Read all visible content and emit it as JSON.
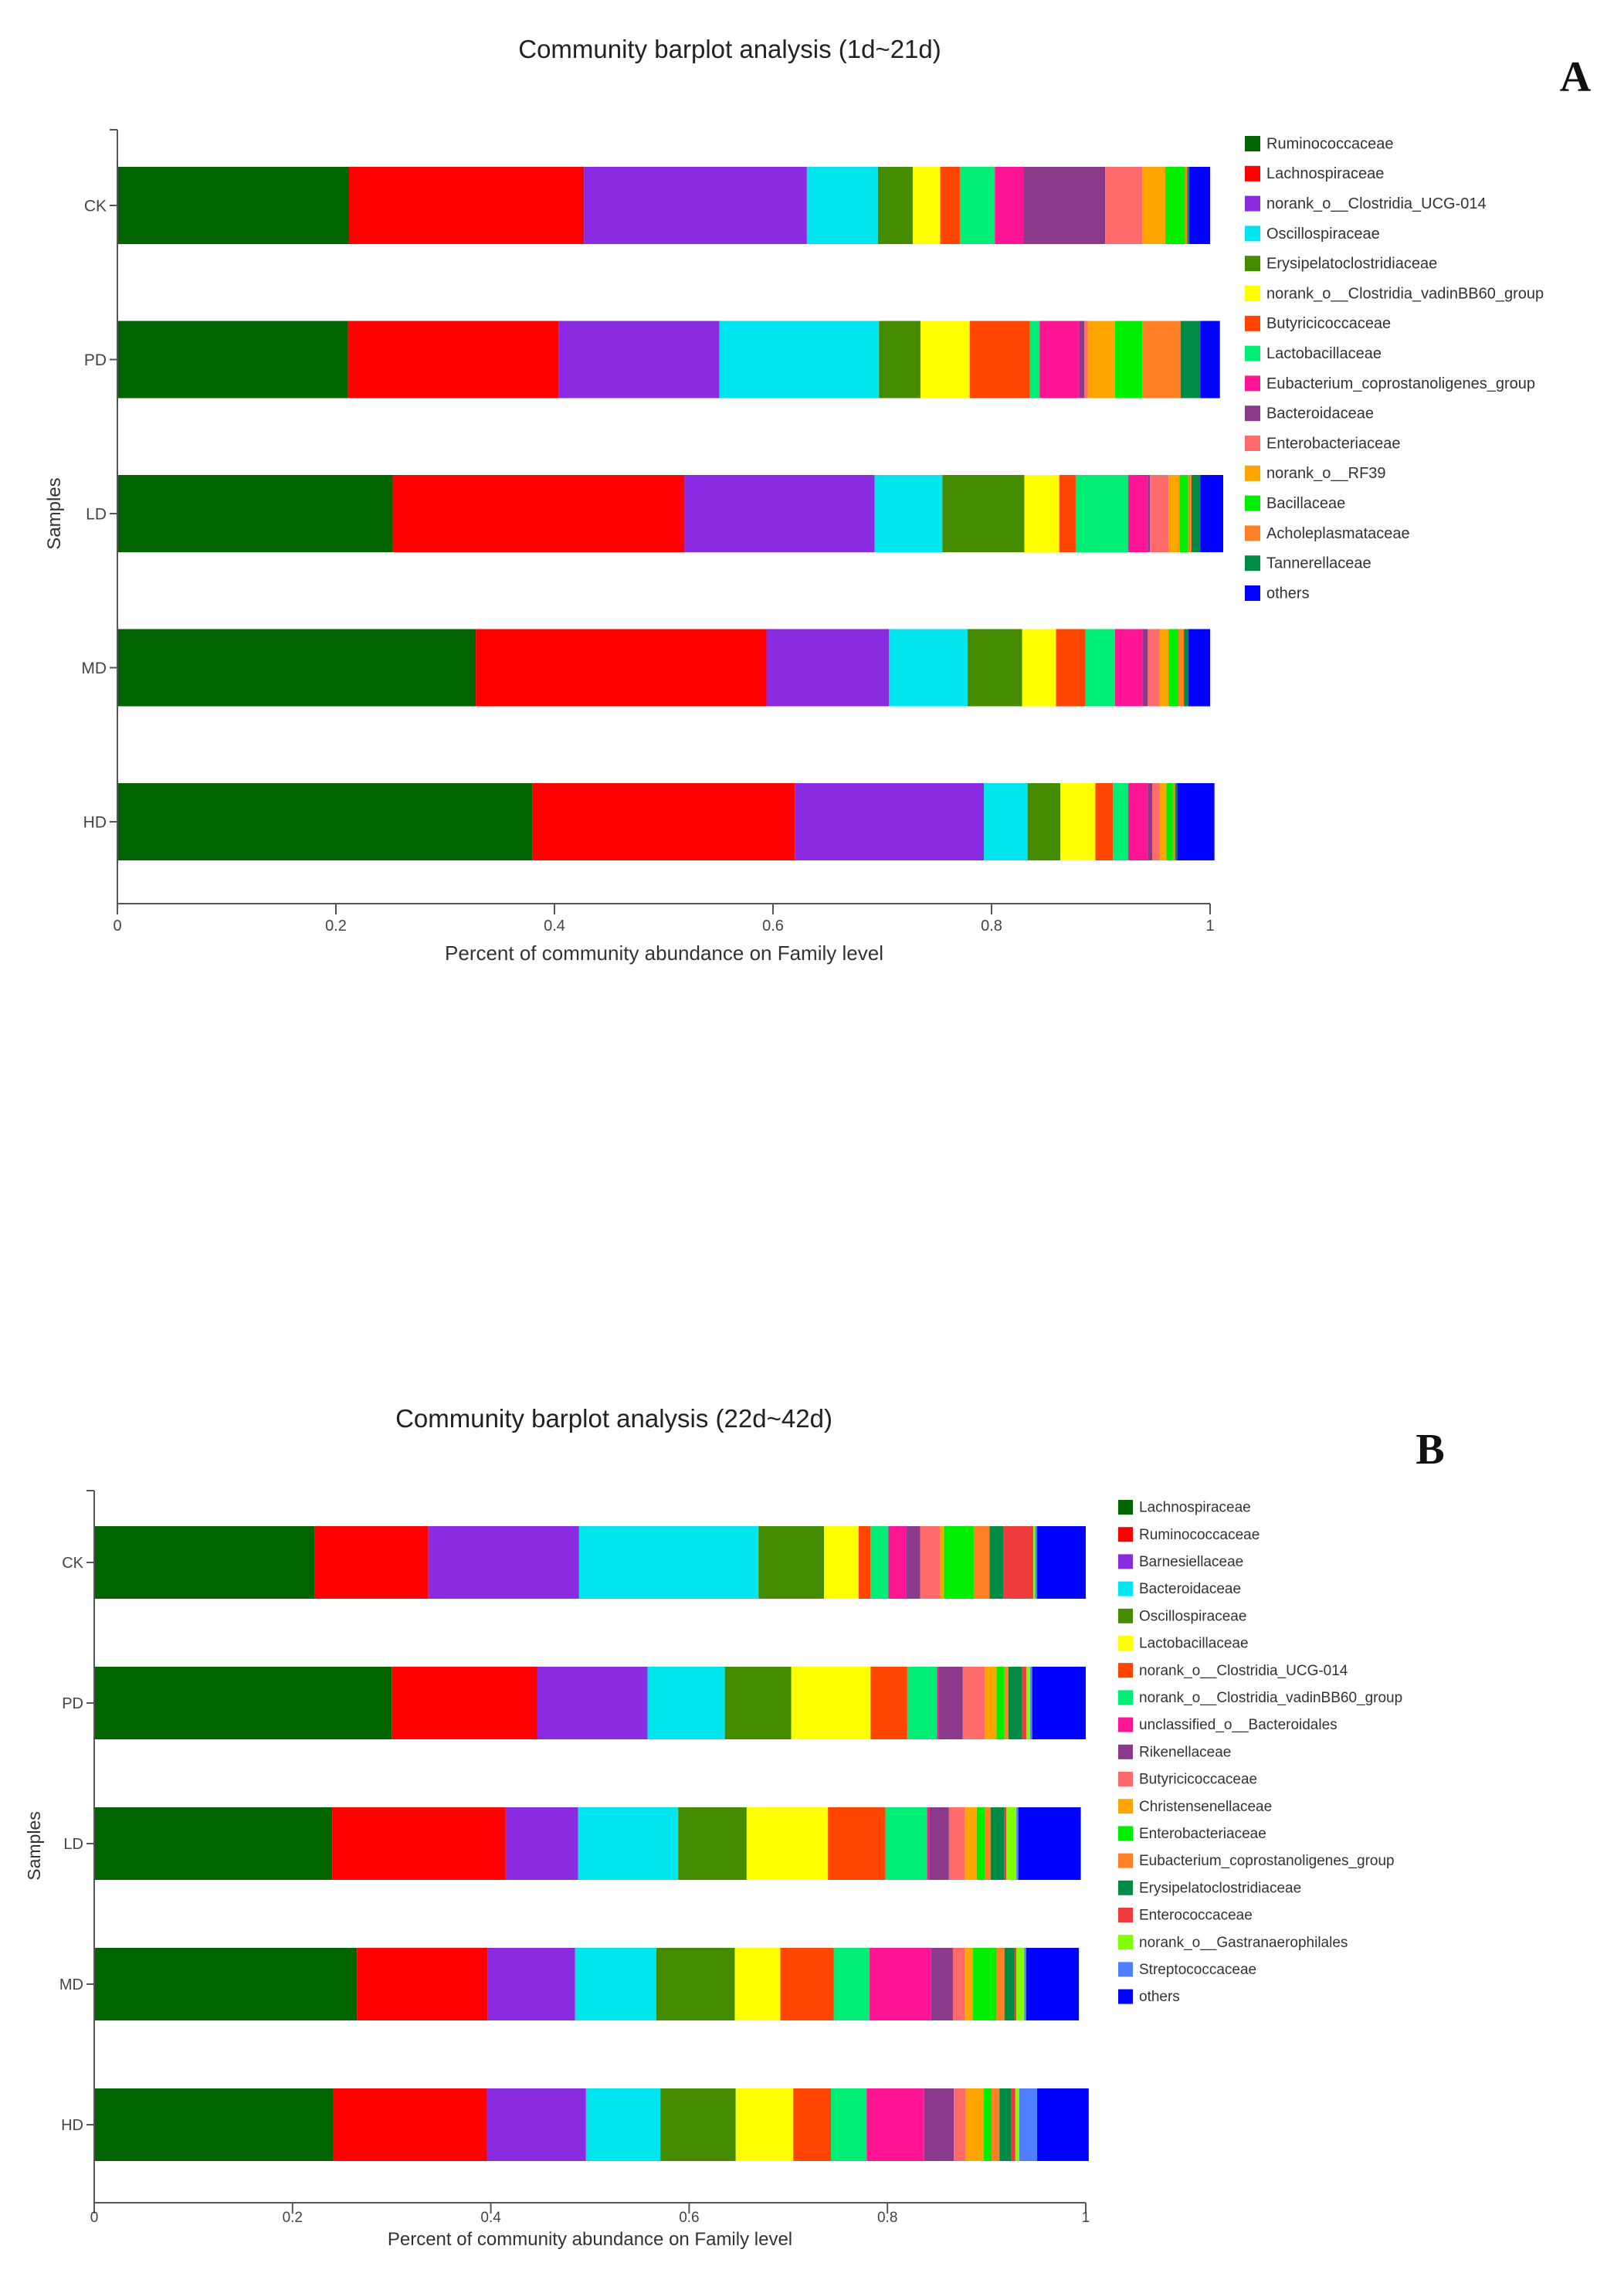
{
  "chart_data": [
    {
      "type": "bar",
      "orientation": "horizontal-stacked",
      "panel_label": "A",
      "title": "Community barplot analysis  (1d~21d)",
      "xlabel": "Percent of community abundance on Family level",
      "ylabel": "Samples",
      "xlim": [
        0,
        1
      ],
      "xticks": [
        "0",
        "0.2",
        "0.4",
        "0.6",
        "0.8",
        "1"
      ],
      "categories": [
        "CK",
        "PD",
        "LD",
        "MD",
        "HD"
      ],
      "legend_position": "right",
      "series": [
        {
          "name": "Ruminococcaceae",
          "color": "#006400",
          "values": [
            0.212,
            0.211,
            0.252,
            0.328,
            0.38
          ]
        },
        {
          "name": "Lachnospiraceae",
          "color": "#ff0000",
          "values": [
            0.215,
            0.193,
            0.267,
            0.266,
            0.24
          ]
        },
        {
          "name": "norank_o__Clostridia_UCG-014",
          "color": "#8a2be2",
          "values": [
            0.204,
            0.147,
            0.174,
            0.112,
            0.173
          ]
        },
        {
          "name": "Oscillospiraceae",
          "color": "#00e5ee",
          "values": [
            0.065,
            0.146,
            0.062,
            0.072,
            0.04
          ]
        },
        {
          "name": "Erysipelatoclostridiaceae",
          "color": "#458b00",
          "values": [
            0.032,
            0.038,
            0.075,
            0.05,
            0.03
          ]
        },
        {
          "name": "norank_o__Clostridia_vadinBB60_group",
          "color": "#ffff00",
          "values": [
            0.025,
            0.045,
            0.032,
            0.031,
            0.032
          ]
        },
        {
          "name": "Butyricicoccaceae",
          "color": "#ff4500",
          "values": [
            0.018,
            0.055,
            0.015,
            0.027,
            0.016
          ]
        },
        {
          "name": "Lactobacillaceae",
          "color": "#00ee76",
          "values": [
            0.032,
            0.009,
            0.048,
            0.027,
            0.014
          ]
        },
        {
          "name": "Eubacterium_coprostanoligenes_group",
          "color": "#ff1493",
          "values": [
            0.026,
            0.036,
            0.018,
            0.025,
            0.018
          ]
        },
        {
          "name": "Bacteroidaceae",
          "color": "#8b3a8b",
          "values": [
            0.075,
            0.005,
            0.002,
            0.005,
            0.004
          ]
        },
        {
          "name": "Enterobacteriaceae",
          "color": "#ff6a6a",
          "values": [
            0.034,
            0.003,
            0.017,
            0.011,
            0.007
          ]
        },
        {
          "name": "norank_o__RF39",
          "color": "#ffa500",
          "values": [
            0.021,
            0.025,
            0.01,
            0.008,
            0.006
          ]
        },
        {
          "name": "Bacillaceae",
          "color": "#00ee00",
          "values": [
            0.018,
            0.025,
            0.008,
            0.009,
            0.006
          ]
        },
        {
          "name": "Acholeplasmataceae",
          "color": "#ff7f24",
          "values": [
            0.002,
            0.035,
            0.003,
            0.005,
            0.002
          ]
        },
        {
          "name": "Tannerellaceae",
          "color": "#008b45",
          "values": [
            0.002,
            0.018,
            0.008,
            0.004,
            0.002
          ]
        },
        {
          "name": "others",
          "color": "#0000ff",
          "values": [
            0.019,
            0.018,
            0.021,
            0.02,
            0.034
          ]
        }
      ]
    },
    {
      "type": "bar",
      "orientation": "horizontal-stacked",
      "panel_label": "B",
      "title": "Community barplot analysis  (22d~42d)",
      "xlabel": "Percent of community abundance on Family level",
      "ylabel": "Samples",
      "xlim": [
        0,
        1
      ],
      "xticks": [
        "0",
        "0.2",
        "0.4",
        "0.6",
        "0.8",
        "1"
      ],
      "categories": [
        "CK",
        "PD",
        "LD",
        "MD",
        "HD"
      ],
      "legend_position": "right",
      "series": [
        {
          "name": "Lachnospiraceae",
          "color": "#006400",
          "values": [
            0.222,
            0.3,
            0.24,
            0.265,
            0.241
          ]
        },
        {
          "name": "Ruminococcaceae",
          "color": "#ff0000",
          "values": [
            0.115,
            0.147,
            0.175,
            0.132,
            0.155
          ]
        },
        {
          "name": "Barnesiellaceae",
          "color": "#8a2be2",
          "values": [
            0.152,
            0.111,
            0.073,
            0.088,
            0.1
          ]
        },
        {
          "name": "Bacteroidaceae",
          "color": "#00e5ee",
          "values": [
            0.181,
            0.078,
            0.101,
            0.082,
            0.075
          ]
        },
        {
          "name": "Oscillospiraceae",
          "color": "#458b00",
          "values": [
            0.066,
            0.067,
            0.069,
            0.079,
            0.076
          ]
        },
        {
          "name": "Lactobacillaceae",
          "color": "#ffff00",
          "values": [
            0.035,
            0.08,
            0.082,
            0.046,
            0.058
          ]
        },
        {
          "name": "norank_o__Clostridia_UCG-014",
          "color": "#ff4500",
          "values": [
            0.012,
            0.037,
            0.058,
            0.054,
            0.038
          ]
        },
        {
          "name": "norank_o__Clostridia_vadinBB60_group",
          "color": "#00ee76",
          "values": [
            0.018,
            0.03,
            0.042,
            0.036,
            0.036
          ]
        },
        {
          "name": "unclassified_o__Bacteroidales",
          "color": "#ff1493",
          "values": [
            0.018,
            0.002,
            0.002,
            0.062,
            0.058
          ]
        },
        {
          "name": "Rikenellaceae",
          "color": "#8b3a8b",
          "values": [
            0.014,
            0.024,
            0.02,
            0.022,
            0.03
          ]
        },
        {
          "name": "Butyricicoccaceae",
          "color": "#ff6a6a",
          "values": [
            0.02,
            0.022,
            0.016,
            0.012,
            0.012
          ]
        },
        {
          "name": "Christensenellaceae",
          "color": "#ffa500",
          "values": [
            0.004,
            0.012,
            0.012,
            0.008,
            0.018
          ]
        },
        {
          "name": "Enterobacteriaceae",
          "color": "#00ee00",
          "values": [
            0.03,
            0.008,
            0.008,
            0.024,
            0.008
          ]
        },
        {
          "name": "Eubacterium_coprostanoligenes_group",
          "color": "#ff7f24",
          "values": [
            0.016,
            0.004,
            0.006,
            0.008,
            0.008
          ]
        },
        {
          "name": "Erysipelatoclostridiaceae",
          "color": "#008b45",
          "values": [
            0.014,
            0.014,
            0.014,
            0.01,
            0.012
          ]
        },
        {
          "name": "Enterococcaceae",
          "color": "#ee3b3b",
          "values": [
            0.03,
            0.004,
            0.002,
            0.002,
            0.004
          ]
        },
        {
          "name": "norank_o__Gastranaerophilales",
          "color": "#7fff00",
          "values": [
            0.002,
            0.004,
            0.01,
            0.008,
            0.004
          ]
        },
        {
          "name": "Streptococcaceae",
          "color": "#4f7fff",
          "values": [
            0.002,
            0.002,
            0.002,
            0.002,
            0.018
          ]
        },
        {
          "name": "others",
          "color": "#0000ff",
          "values": [
            0.049,
            0.054,
            0.063,
            0.053,
            0.052
          ]
        }
      ]
    }
  ]
}
